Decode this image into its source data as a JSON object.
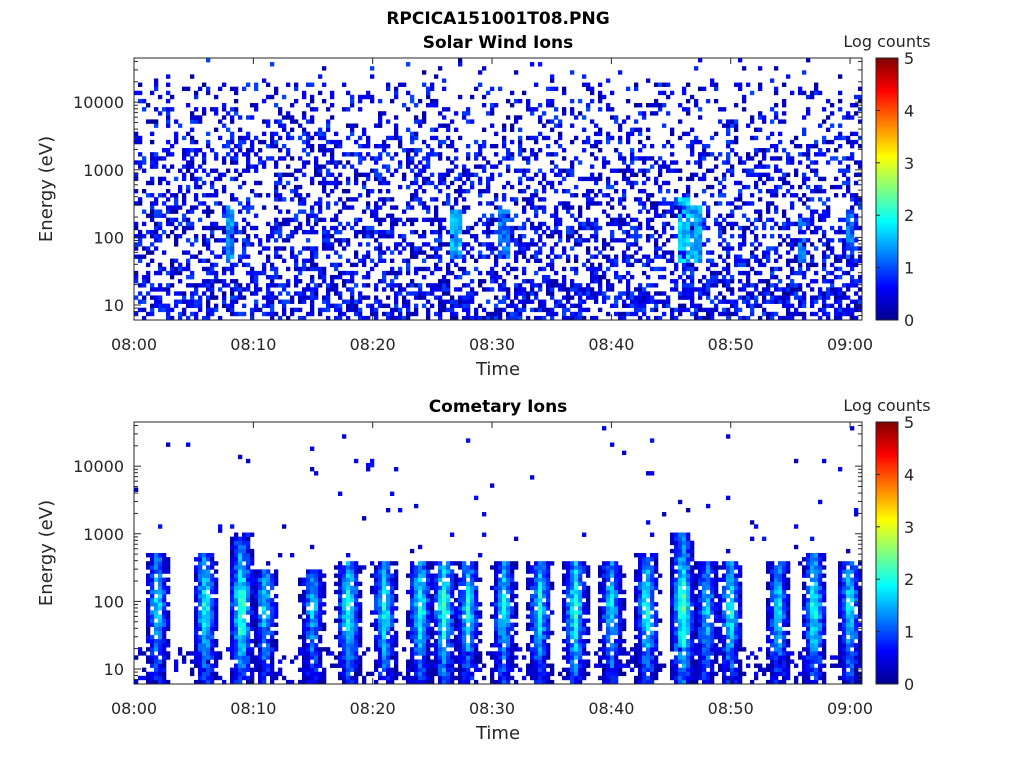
{
  "figure": {
    "filename": "RPCICA151001T08.PNG"
  },
  "colorbar": {
    "label": "Log counts",
    "ticks": [
      "0",
      "1",
      "2",
      "3",
      "4",
      "5"
    ],
    "range": [
      0,
      5
    ],
    "colormap": "jet"
  },
  "chart_data": [
    {
      "type": "heatmap",
      "title": "Solar Wind Ions",
      "xlabel": "Time",
      "ylabel": "Energy (eV)",
      "x_ticks": [
        "08:00",
        "08:10",
        "08:20",
        "08:30",
        "08:40",
        "08:50",
        "09:00"
      ],
      "x_range": [
        "08:00",
        "09:01"
      ],
      "y_ticks": [
        "10",
        "100",
        "1000",
        "10000"
      ],
      "y_scale": "log",
      "y_range": [
        6,
        45000
      ],
      "color_label": "Log counts",
      "color_range": [
        0,
        5
      ],
      "description_values": {
        "background_level": "scattered low counts 0-1 across 10-20000 eV",
        "enhancements": [
          {
            "time": "08:08",
            "energy_eV": [
              40,
              300
            ],
            "log_counts": 1.6
          },
          {
            "time": "08:27",
            "energy_eV": [
              50,
              250
            ],
            "log_counts": 1.8
          },
          {
            "time": "08:31",
            "energy_eV": [
              50,
              300
            ],
            "log_counts": 1.5
          },
          {
            "time": "08:46",
            "energy_eV": [
              40,
              400
            ],
            "log_counts": 1.9
          },
          {
            "time": "08:47",
            "energy_eV": [
              40,
              300
            ],
            "log_counts": 1.7
          },
          {
            "time": "08:56",
            "energy_eV": [
              40,
              200
            ],
            "log_counts": 1.5
          },
          {
            "time": "09:00",
            "energy_eV": [
              50,
              250
            ],
            "log_counts": 1.4
          }
        ]
      }
    },
    {
      "type": "heatmap",
      "title": "Cometary Ions",
      "xlabel": "Time",
      "ylabel": "Energy (eV)",
      "x_ticks": [
        "08:00",
        "08:10",
        "08:20",
        "08:30",
        "08:40",
        "08:50",
        "09:00"
      ],
      "x_range": [
        "08:00",
        "09:01"
      ],
      "y_ticks": [
        "10",
        "100",
        "1000",
        "10000"
      ],
      "y_scale": "log",
      "y_range": [
        6,
        45000
      ],
      "color_label": "Log counts",
      "color_range": [
        0,
        5
      ],
      "description_values": {
        "bursts": [
          {
            "time": "08:02",
            "energy_eV": [
              6,
              500
            ],
            "peak_log_counts": 2.3
          },
          {
            "time": "08:06",
            "energy_eV": [
              6,
              500
            ],
            "peak_log_counts": 2.5
          },
          {
            "time": "08:09",
            "energy_eV": [
              6,
              1000
            ],
            "peak_log_counts": 2.9
          },
          {
            "time": "08:11",
            "energy_eV": [
              6,
              300
            ],
            "peak_log_counts": 2.2
          },
          {
            "time": "08:15",
            "energy_eV": [
              6,
              300
            ],
            "peak_log_counts": 2.1
          },
          {
            "time": "08:18",
            "energy_eV": [
              6,
              400
            ],
            "peak_log_counts": 2.6
          },
          {
            "time": "08:21",
            "energy_eV": [
              6,
              400
            ],
            "peak_log_counts": 2.4
          },
          {
            "time": "08:24",
            "energy_eV": [
              6,
              400
            ],
            "peak_log_counts": 2.5
          },
          {
            "time": "08:26",
            "energy_eV": [
              6,
              400
            ],
            "peak_log_counts": 2.7
          },
          {
            "time": "08:28",
            "energy_eV": [
              6,
              400
            ],
            "peak_log_counts": 2.4
          },
          {
            "time": "08:31",
            "energy_eV": [
              6,
              400
            ],
            "peak_log_counts": 2.3
          },
          {
            "time": "08:34",
            "energy_eV": [
              6,
              400
            ],
            "peak_log_counts": 2.4
          },
          {
            "time": "08:37",
            "energy_eV": [
              6,
              400
            ],
            "peak_log_counts": 2.6
          },
          {
            "time": "08:40",
            "energy_eV": [
              6,
              400
            ],
            "peak_log_counts": 2.3
          },
          {
            "time": "08:43",
            "energy_eV": [
              6,
              500
            ],
            "peak_log_counts": 2.5
          },
          {
            "time": "08:46",
            "energy_eV": [
              6,
              1000
            ],
            "peak_log_counts": 2.9
          },
          {
            "time": "08:48",
            "energy_eV": [
              6,
              400
            ],
            "peak_log_counts": 2.2
          },
          {
            "time": "08:50",
            "energy_eV": [
              6,
              400
            ],
            "peak_log_counts": 2.4
          },
          {
            "time": "08:54",
            "energy_eV": [
              6,
              400
            ],
            "peak_log_counts": 2.3
          },
          {
            "time": "08:57",
            "energy_eV": [
              6,
              500
            ],
            "peak_log_counts": 2.6
          },
          {
            "time": "09:00",
            "energy_eV": [
              6,
              400
            ],
            "peak_log_counts": 2.4
          }
        ]
      }
    }
  ]
}
